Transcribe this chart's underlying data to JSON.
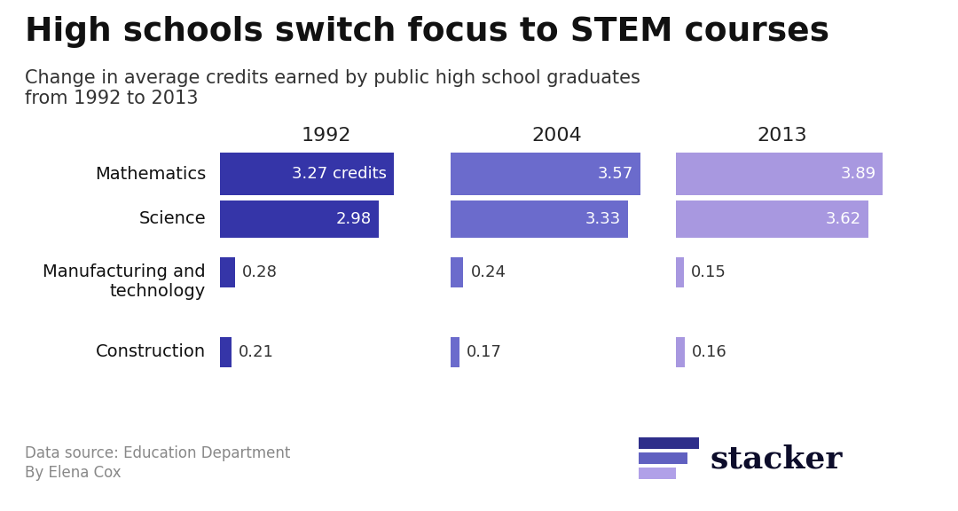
{
  "title": "High schools switch focus to STEM courses",
  "subtitle": "Change in average credits earned by public high school graduates\nfrom 1992 to 2013",
  "categories": [
    "Mathematics",
    "Science",
    "Manufacturing and\ntechnology",
    "Construction"
  ],
  "years": [
    "1992",
    "2004",
    "2013"
  ],
  "values": {
    "Mathematics": [
      3.27,
      3.57,
      3.89
    ],
    "Science": [
      2.98,
      3.33,
      3.62
    ],
    "Manufacturing and\ntechnology": [
      0.28,
      0.24,
      0.15
    ],
    "Construction": [
      0.21,
      0.17,
      0.16
    ]
  },
  "labels": {
    "Mathematics": [
      "3.27 credits",
      "3.57",
      "3.89"
    ],
    "Science": [
      "2.98",
      "3.33",
      "3.62"
    ],
    "Manufacturing and\ntechnology": [
      "0.28",
      "0.24",
      "0.15"
    ],
    "Construction": [
      "0.21",
      "0.17",
      "0.16"
    ]
  },
  "colors": {
    "1992": "#3535a8",
    "2004": "#6b6bcc",
    "2013": "#a898e0"
  },
  "logo_colors": [
    "#2e2e8a",
    "#6060c0",
    "#b0a0e8"
  ],
  "background_color": "#ffffff",
  "datasource": "Data source: Education Department",
  "author": "By Elena Cox",
  "stacker_text_color": "#0d0d2b",
  "category_label_color": "#111111",
  "subtitle_color": "#333333",
  "source_color": "#888888"
}
